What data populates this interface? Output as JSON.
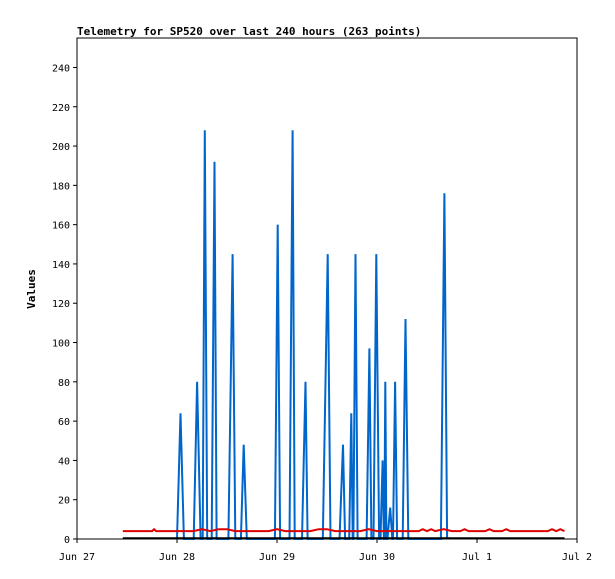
{
  "chart_data": {
    "type": "line",
    "title": "Telemetry for SP520 over last 240 hours (263 points)",
    "xlabel": "",
    "ylabel": "Values",
    "xlim": [
      "2025-06-27 00:00",
      "2025-07-02 00:00"
    ],
    "ylim": [
      0,
      255
    ],
    "x_ticks": [
      "Jun 27",
      "Jun 28",
      "Jun 29",
      "Jun 30",
      "Jul 1",
      "Jul 2"
    ],
    "y_ticks": [
      0,
      20,
      40,
      60,
      80,
      100,
      120,
      140,
      160,
      180,
      200,
      220,
      240
    ],
    "grid": false,
    "legend": "none",
    "series": [
      {
        "color": "#0066cc",
        "points": [
          [
            "2025-06-28 00:00",
            0
          ],
          [
            "2025-06-28 00:50",
            64
          ],
          [
            "2025-06-28 01:40",
            0
          ],
          [
            "2025-06-28 04:00",
            0
          ],
          [
            "2025-06-28 04:50",
            80
          ],
          [
            "2025-06-28 05:40",
            0
          ],
          [
            "2025-06-28 06:10",
            0
          ],
          [
            "2025-06-28 06:40",
            208
          ],
          [
            "2025-06-28 07:15",
            0
          ],
          [
            "2025-06-28 08:20",
            0
          ],
          [
            "2025-06-28 09:00",
            192
          ],
          [
            "2025-06-28 09:30",
            0
          ],
          [
            "2025-06-28 12:20",
            0
          ],
          [
            "2025-06-28 13:20",
            145
          ],
          [
            "2025-06-28 14:00",
            0
          ],
          [
            "2025-06-28 15:20",
            0
          ],
          [
            "2025-06-28 16:00",
            48
          ],
          [
            "2025-06-28 16:45",
            0
          ],
          [
            "2025-06-28 23:30",
            0
          ],
          [
            "2025-06-29 00:10",
            160
          ],
          [
            "2025-06-29 00:45",
            0
          ],
          [
            "2025-06-29 03:00",
            0
          ],
          [
            "2025-06-29 03:45",
            208
          ],
          [
            "2025-06-29 04:15",
            0
          ],
          [
            "2025-06-29 06:00",
            0
          ],
          [
            "2025-06-29 06:50",
            80
          ],
          [
            "2025-06-29 07:20",
            0
          ],
          [
            "2025-06-29 11:00",
            0
          ],
          [
            "2025-06-29 12:10",
            145
          ],
          [
            "2025-06-29 12:50",
            0
          ],
          [
            "2025-06-29 15:00",
            0
          ],
          [
            "2025-06-29 15:50",
            48
          ],
          [
            "2025-06-29 16:20",
            0
          ],
          [
            "2025-06-29 17:20",
            0
          ],
          [
            "2025-06-29 17:50",
            64
          ],
          [
            "2025-06-29 18:10",
            0
          ],
          [
            "2025-06-29 18:20",
            0
          ],
          [
            "2025-06-29 18:50",
            145
          ],
          [
            "2025-06-29 19:20",
            0
          ],
          [
            "2025-06-29 21:30",
            0
          ],
          [
            "2025-06-29 22:10",
            97
          ],
          [
            "2025-06-29 22:40",
            0
          ],
          [
            "2025-06-29 23:10",
            0
          ],
          [
            "2025-06-29 23:50",
            145
          ],
          [
            "2025-06-30 00:30",
            0
          ],
          [
            "2025-06-30 00:50",
            0
          ],
          [
            "2025-06-30 01:20",
            40
          ],
          [
            "2025-06-30 01:40",
            0
          ],
          [
            "2025-06-30 01:45",
            0
          ],
          [
            "2025-06-30 02:00",
            80
          ],
          [
            "2025-06-30 02:15",
            0
          ],
          [
            "2025-06-30 02:30",
            0
          ],
          [
            "2025-06-30 03:10",
            16
          ],
          [
            "2025-06-30 03:40",
            0
          ],
          [
            "2025-06-30 03:50",
            0
          ],
          [
            "2025-06-30 04:20",
            80
          ],
          [
            "2025-06-30 04:50",
            0
          ],
          [
            "2025-06-30 06:10",
            0
          ],
          [
            "2025-06-30 06:50",
            112
          ],
          [
            "2025-06-30 07:30",
            0
          ],
          [
            "2025-06-30 15:20",
            0
          ],
          [
            "2025-06-30 16:10",
            176
          ],
          [
            "2025-06-30 16:50",
            0
          ]
        ]
      },
      {
        "color": "#dd0000",
        "points": [
          [
            "2025-06-27 11:00",
            4
          ],
          [
            "2025-06-27 18:00",
            4
          ],
          [
            "2025-06-27 18:30",
            5
          ],
          [
            "2025-06-27 19:00",
            4
          ],
          [
            "2025-06-28 04:00",
            4
          ],
          [
            "2025-06-28 06:00",
            5
          ],
          [
            "2025-06-28 08:00",
            4
          ],
          [
            "2025-06-28 10:00",
            5
          ],
          [
            "2025-06-28 12:00",
            5
          ],
          [
            "2025-06-28 14:00",
            4
          ],
          [
            "2025-06-28 22:00",
            4
          ],
          [
            "2025-06-29 00:00",
            5
          ],
          [
            "2025-06-29 02:00",
            4
          ],
          [
            "2025-06-29 08:00",
            4
          ],
          [
            "2025-06-29 10:00",
            5
          ],
          [
            "2025-06-29 12:00",
            5
          ],
          [
            "2025-06-29 14:00",
            4
          ],
          [
            "2025-06-29 20:00",
            4
          ],
          [
            "2025-06-29 22:00",
            5
          ],
          [
            "2025-06-30 00:00",
            4
          ],
          [
            "2025-06-30 10:00",
            4
          ],
          [
            "2025-06-30 11:00",
            5
          ],
          [
            "2025-06-30 12:00",
            4
          ],
          [
            "2025-06-30 13:00",
            5
          ],
          [
            "2025-06-30 14:00",
            4
          ],
          [
            "2025-06-30 16:00",
            5
          ],
          [
            "2025-06-30 18:00",
            4
          ],
          [
            "2025-06-30 20:00",
            4
          ],
          [
            "2025-06-30 21:00",
            5
          ],
          [
            "2025-06-30 22:00",
            4
          ],
          [
            "2025-07-01 02:00",
            4
          ],
          [
            "2025-07-01 03:00",
            5
          ],
          [
            "2025-07-01 04:00",
            4
          ],
          [
            "2025-07-01 06:00",
            4
          ],
          [
            "2025-07-01 07:00",
            5
          ],
          [
            "2025-07-01 08:00",
            4
          ],
          [
            "2025-07-01 17:00",
            4
          ],
          [
            "2025-07-01 18:00",
            5
          ],
          [
            "2025-07-01 19:00",
            4
          ],
          [
            "2025-07-01 20:00",
            5
          ],
          [
            "2025-07-01 21:00",
            4
          ]
        ]
      },
      {
        "color": "#000000",
        "points": [
          [
            "2025-06-27 11:00",
            0.4
          ],
          [
            "2025-07-01 21:00",
            0.4
          ]
        ]
      }
    ]
  }
}
